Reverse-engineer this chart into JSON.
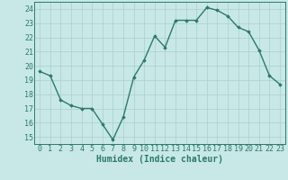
{
  "x": [
    0,
    1,
    2,
    3,
    4,
    5,
    6,
    7,
    8,
    9,
    10,
    11,
    12,
    13,
    14,
    15,
    16,
    17,
    18,
    19,
    20,
    21,
    22,
    23
  ],
  "y": [
    19.6,
    19.3,
    17.6,
    17.2,
    17.0,
    17.0,
    15.9,
    14.8,
    16.4,
    19.2,
    20.4,
    22.1,
    21.3,
    23.2,
    23.2,
    23.2,
    24.1,
    23.9,
    23.5,
    22.7,
    22.4,
    21.1,
    19.3,
    18.7
  ],
  "line_color": "#2a7a6a",
  "bg_color": "#c8e8e8",
  "grid_color": "#aacece",
  "xlabel": "Humidex (Indice chaleur)",
  "xlim": [
    -0.5,
    23.5
  ],
  "ylim": [
    14.5,
    24.5
  ],
  "yticks": [
    15,
    16,
    17,
    18,
    19,
    20,
    21,
    22,
    23,
    24
  ],
  "xticks": [
    0,
    1,
    2,
    3,
    4,
    5,
    6,
    7,
    8,
    9,
    10,
    11,
    12,
    13,
    14,
    15,
    16,
    17,
    18,
    19,
    20,
    21,
    22,
    23
  ],
  "marker": "D",
  "marker_size": 1.8,
  "line_width": 1.0,
  "tick_fontsize": 6.0,
  "xlabel_fontsize": 7.0
}
